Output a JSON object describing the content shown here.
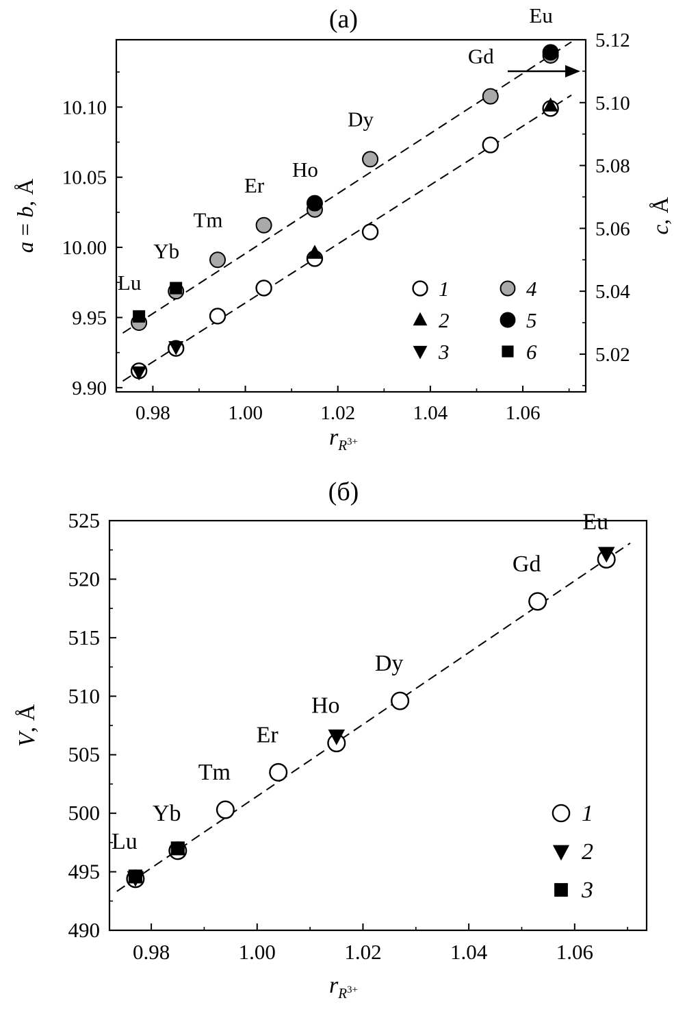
{
  "colors": {
    "ink": "#000000",
    "marker_gray": "#a9a9a9",
    "background": "#ffffff"
  },
  "chart_data": [
    {
      "type": "scatter",
      "title": "(а)",
      "xlabel": "r_R3+",
      "xlabel_parts": {
        "base": "r",
        "sub": "R",
        "sup": "3+"
      },
      "ylabel_left": "a = b, Å",
      "ylabel_left_parts": [
        {
          "text": "a",
          "italic": true
        },
        {
          "text": " = ",
          "italic": false
        },
        {
          "text": "b",
          "italic": true
        },
        {
          "text": ", Å",
          "italic": false
        }
      ],
      "ylabel_right": "c, Å",
      "ylabel_right_parts": [
        {
          "text": "c",
          "italic": true
        },
        {
          "text": ", Å",
          "italic": false
        }
      ],
      "xlim": [
        0.9721,
        1.0736
      ],
      "x_ticks": [
        0.98,
        1.0,
        1.02,
        1.04,
        1.06
      ],
      "x_tick_labels": [
        "0.98",
        "1.00",
        "1.02",
        "1.04",
        "1.06"
      ],
      "ylim_left": [
        9.897,
        10.148
      ],
      "y_ticks_left": [
        9.9,
        9.95,
        10.0,
        10.05,
        10.1
      ],
      "y_tick_labels_left": [
        "9.90",
        "9.95",
        "10.00",
        "10.05",
        "10.10"
      ],
      "ylim_right": [
        5.008,
        5.12
      ],
      "y_ticks_right": [
        5.02,
        5.04,
        5.06,
        5.08,
        5.1,
        5.12
      ],
      "y_tick_labels_right": [
        "5.02",
        "5.04",
        "5.06",
        "5.08",
        "5.10",
        "5.12"
      ],
      "grid": false,
      "axis_arrow": "right",
      "legend": {
        "position": "inside-lower-right",
        "columns": 2,
        "items": [
          {
            "label": "1",
            "marker": "circle-open"
          },
          {
            "label": "2",
            "marker": "triangle-up"
          },
          {
            "label": "3",
            "marker": "triangle-down"
          },
          {
            "label": "4",
            "marker": "circle-gray"
          },
          {
            "label": "5",
            "marker": "circle-black"
          },
          {
            "label": "6",
            "marker": "square-black"
          }
        ]
      },
      "series": [
        {
          "name": "1",
          "marker": "circle-open",
          "axis": "left",
          "points": [
            [
              0.977,
              9.912
            ],
            [
              0.985,
              9.928
            ],
            [
              0.994,
              9.951
            ],
            [
              1.004,
              9.971
            ],
            [
              1.015,
              9.992
            ],
            [
              1.027,
              10.011
            ],
            [
              1.053,
              10.073
            ],
            [
              1.066,
              10.099
            ]
          ]
        },
        {
          "name": "4",
          "marker": "circle-gray",
          "axis": "right",
          "points": [
            [
              0.977,
              5.03
            ],
            [
              0.985,
              5.04
            ],
            [
              0.994,
              5.05
            ],
            [
              1.004,
              5.061
            ],
            [
              1.015,
              5.066
            ],
            [
              1.027,
              5.082
            ],
            [
              1.053,
              5.102
            ],
            [
              1.066,
              5.115
            ]
          ]
        },
        {
          "name": "2",
          "marker": "triangle-up",
          "axis": "left",
          "points": [
            [
              1.015,
              9.996
            ],
            [
              1.066,
              10.101
            ]
          ]
        },
        {
          "name": "3",
          "marker": "triangle-down",
          "axis": "left",
          "points": [
            [
              0.977,
              9.911
            ],
            [
              0.985,
              9.929
            ]
          ]
        },
        {
          "name": "5",
          "marker": "circle-black",
          "axis": "right",
          "points": [
            [
              1.015,
              5.068
            ],
            [
              1.066,
              5.116
            ]
          ]
        },
        {
          "name": "6",
          "marker": "square-black",
          "axis": "right",
          "points": [
            [
              0.977,
              5.032
            ],
            [
              0.985,
              5.041
            ]
          ]
        }
      ],
      "trend_lines": [
        {
          "axis": "left",
          "x": [
            0.9735,
            1.0705
          ],
          "y": [
            9.9047,
            10.1085
          ]
        },
        {
          "axis": "right",
          "x": [
            0.9735,
            1.0705
          ],
          "y": [
            5.0267,
            5.1193
          ]
        }
      ],
      "annotations": [
        {
          "label": "Lu",
          "x": 0.977
        },
        {
          "label": "Yb",
          "x": 0.985
        },
        {
          "label": "Tm",
          "x": 0.994
        },
        {
          "label": "Er",
          "x": 1.004
        },
        {
          "label": "Ho",
          "x": 1.015
        },
        {
          "label": "Dy",
          "x": 1.027
        },
        {
          "label": "Gd",
          "x": 1.053
        },
        {
          "label": "Eu",
          "x": 1.066
        }
      ],
      "annotation_anchor_series": "4"
    },
    {
      "type": "scatter",
      "title": "(б)",
      "xlabel": "r_R3+",
      "xlabel_parts": {
        "base": "r",
        "sub": "R",
        "sup": "3+"
      },
      "ylabel_left": "V, Å",
      "ylabel_left_parts": [
        {
          "text": "V",
          "italic": true
        },
        {
          "text": ", Å",
          "italic": false
        }
      ],
      "xlim": [
        0.9721,
        1.0736
      ],
      "x_ticks": [
        0.98,
        1.0,
        1.02,
        1.04,
        1.06
      ],
      "x_tick_labels": [
        "0.98",
        "1.00",
        "1.02",
        "1.04",
        "1.06"
      ],
      "ylim_left": [
        490,
        525
      ],
      "y_ticks_left": [
        490,
        495,
        500,
        505,
        510,
        515,
        520,
        525
      ],
      "y_tick_labels_left": [
        "490",
        "495",
        "500",
        "505",
        "510",
        "515",
        "520",
        "525"
      ],
      "grid": false,
      "legend": {
        "position": "inside-lower-right",
        "columns": 1,
        "items": [
          {
            "label": "1",
            "marker": "circle-open"
          },
          {
            "label": "2",
            "marker": "triangle-down"
          },
          {
            "label": "3",
            "marker": "square-black"
          }
        ]
      },
      "series": [
        {
          "name": "1",
          "marker": "circle-open",
          "axis": "left",
          "points": [
            [
              0.977,
              494.4
            ],
            [
              0.985,
              496.8
            ],
            [
              0.994,
              500.3
            ],
            [
              1.004,
              503.5
            ],
            [
              1.015,
              506.0
            ],
            [
              1.027,
              509.6
            ],
            [
              1.053,
              518.1
            ],
            [
              1.066,
              521.7
            ]
          ]
        },
        {
          "name": "2",
          "marker": "triangle-down",
          "axis": "left",
          "points": [
            [
              0.977,
              494.5
            ],
            [
              1.015,
              506.6
            ],
            [
              1.066,
              522.2
            ]
          ]
        },
        {
          "name": "3",
          "marker": "square-black",
          "axis": "left",
          "points": [
            [
              0.977,
              494.6
            ],
            [
              0.985,
              497.0
            ]
          ]
        }
      ],
      "trend_lines": [
        {
          "axis": "left",
          "x": [
            0.9735,
            1.0705
          ],
          "y": [
            493.33,
            523.08
          ]
        }
      ],
      "annotations": [
        {
          "label": "Lu",
          "x": 0.977
        },
        {
          "label": "Yb",
          "x": 0.985
        },
        {
          "label": "Tm",
          "x": 0.994
        },
        {
          "label": "Er",
          "x": 1.004
        },
        {
          "label": "Ho",
          "x": 1.015
        },
        {
          "label": "Dy",
          "x": 1.027
        },
        {
          "label": "Gd",
          "x": 1.053
        },
        {
          "label": "Eu",
          "x": 1.066
        }
      ],
      "annotation_anchor_series": "1"
    }
  ]
}
